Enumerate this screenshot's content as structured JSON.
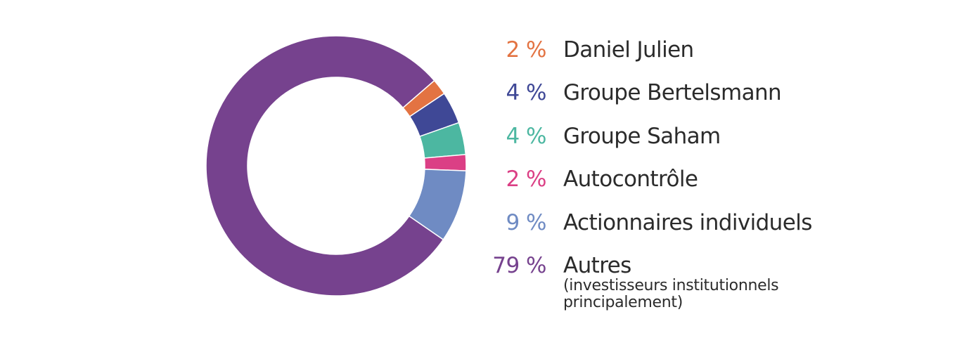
{
  "chart_data": {
    "type": "pie",
    "donut": true,
    "title": "",
    "legend_position": "right",
    "slices": [
      {
        "label": "Daniel Julien",
        "value": 2,
        "display": "2 %",
        "color": "#e37342",
        "note": ""
      },
      {
        "label": "Groupe Bertelsmann",
        "value": 4,
        "display": "4 %",
        "color": "#3f4896",
        "note": ""
      },
      {
        "label": "Groupe Saham",
        "value": 4,
        "display": "4 %",
        "color": "#4cb7a1",
        "note": ""
      },
      {
        "label": "Autocontrôle",
        "value": 2,
        "display": "2 %",
        "color": "#db3f85",
        "note": ""
      },
      {
        "label": "Actionnaires individuels",
        "value": 9,
        "display": "9 %",
        "color": "#6f8bc3",
        "note": ""
      },
      {
        "label": "Autres",
        "value": 79,
        "display": "79 %",
        "color": "#76428e",
        "note": "(investisseurs institutionnels principalement)"
      }
    ]
  }
}
